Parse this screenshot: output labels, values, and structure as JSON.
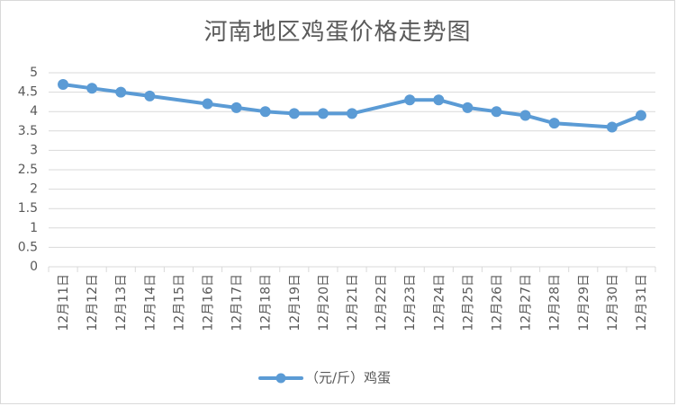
{
  "chart_data": {
    "type": "line",
    "title": "河南地区鸡蛋价格走势图",
    "categories": [
      "12月11日",
      "12月12日",
      "12月13日",
      "12月14日",
      "12月15日",
      "12月16日",
      "12月17日",
      "12月18日",
      "12月19日",
      "12月20日",
      "12月21日",
      "12月22日",
      "12月23日",
      "12月24日",
      "12月25日",
      "12月26日",
      "12月27日",
      "12月28日",
      "12月29日",
      "12月30日",
      "12月31日"
    ],
    "series": [
      {
        "name": "（元/斤）鸡蛋",
        "values": [
          4.7,
          4.6,
          4.5,
          4.4,
          null,
          4.2,
          4.1,
          4.0,
          3.95,
          3.95,
          3.95,
          null,
          4.3,
          4.3,
          4.1,
          4.0,
          3.9,
          3.7,
          null,
          3.6,
          3.9
        ]
      }
    ],
    "yticks": [
      "0",
      "0.5",
      "1",
      "1.5",
      "2",
      "2.5",
      "3",
      "3.5",
      "4",
      "4.5",
      "5"
    ],
    "ylim": [
      0,
      5
    ],
    "grid": true,
    "legend": "bottom",
    "colors": {
      "series": "#5b9bd5",
      "grid": "#d9d9d9",
      "text": "#595959"
    }
  }
}
